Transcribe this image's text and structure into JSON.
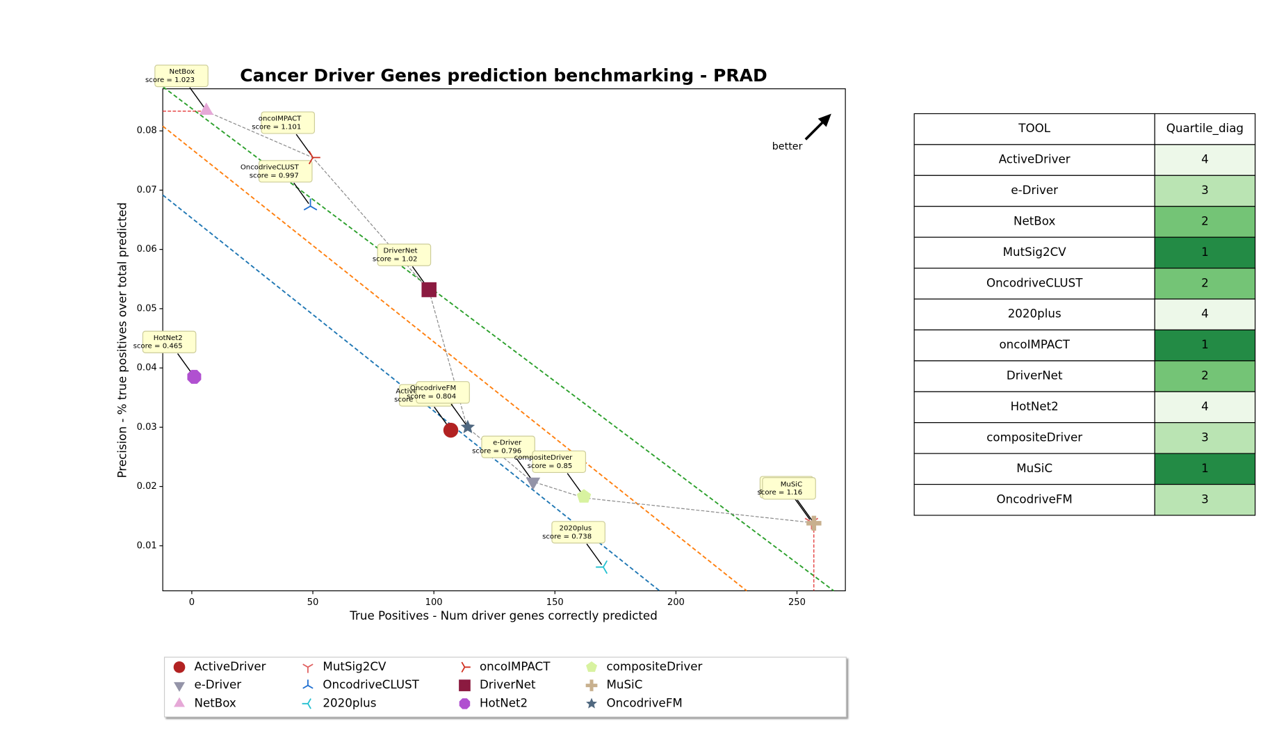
{
  "chart_data": {
    "type": "scatter",
    "title": "Cancer Driver Genes prediction benchmarking - PRAD",
    "x_label": "True Positives - Num driver genes correctly predicted",
    "y_label": "Precision - % true positives over total predicted",
    "annotation": "better",
    "xlim": [
      -12,
      270
    ],
    "xticks": [
      0,
      50,
      100,
      150,
      200,
      250
    ],
    "ylim": [
      0.0024,
      0.0871
    ],
    "yticks": [
      0.01,
      0.02,
      0.03,
      0.04,
      0.05,
      0.06,
      0.07,
      0.08
    ],
    "legend": "bottom",
    "series": [
      {
        "name": "ActiveDriver",
        "color": "#b22222",
        "marker": "circle",
        "x": [
          107
        ],
        "values": [
          0.0295
        ],
        "label": "score = 0.77"
      },
      {
        "name": "e-Driver",
        "color": "#9494a8",
        "marker": "triangle-down",
        "x": [
          141
        ],
        "values": [
          0.0208
        ],
        "label": "score = 0.796"
      },
      {
        "name": "NetBox",
        "color": "#e6a8d7",
        "marker": "triangle-up",
        "x": [
          6
        ],
        "values": [
          0.0834
        ],
        "label": "score = 1.023"
      },
      {
        "name": "MutSig2CV",
        "color": "#e06060",
        "marker": "tri-down",
        "x": [
          256
        ],
        "values": [
          0.014
        ],
        "label": "score = 1.2"
      },
      {
        "name": "OncodriveCLUST",
        "color": "#1f6fd0",
        "marker": "tri-up",
        "x": [
          49
        ],
        "values": [
          0.0673
        ],
        "label": "score = 0.997"
      },
      {
        "name": "2020plus",
        "color": "#22c0d0",
        "marker": "tri-left",
        "x": [
          170
        ],
        "values": [
          0.0064
        ],
        "label": "score = 0.738"
      },
      {
        "name": "oncoIMPACT",
        "color": "#d03020",
        "marker": "tri-right",
        "x": [
          50
        ],
        "values": [
          0.0755
        ],
        "label": "score = 1.101"
      },
      {
        "name": "DriverNet",
        "color": "#8b1a40",
        "marker": "square",
        "x": [
          98
        ],
        "values": [
          0.0532
        ],
        "label": "score = 1.02"
      },
      {
        "name": "HotNet2",
        "color": "#b050d0",
        "marker": "octagon",
        "x": [
          1
        ],
        "values": [
          0.0385
        ],
        "label": "score = 0.465"
      },
      {
        "name": "compositeDriver",
        "color": "#d8f2a0",
        "marker": "pentagon",
        "x": [
          162
        ],
        "values": [
          0.0183
        ],
        "label": "score = 0.85"
      },
      {
        "name": "MuSiC",
        "color": "#c8b08e",
        "marker": "plus",
        "x": [
          257
        ],
        "values": [
          0.0138
        ],
        "label": "score = 1.16"
      },
      {
        "name": "OncodriveFM",
        "color": "#506880",
        "marker": "star",
        "x": [
          114
        ],
        "values": [
          0.03
        ],
        "label": "score = 0.804"
      }
    ]
  },
  "table": {
    "header": [
      "TOOL",
      "Quartile_diag"
    ],
    "rows": [
      [
        "ActiveDriver",
        4
      ],
      [
        "e-Driver",
        3
      ],
      [
        "NetBox",
        2
      ],
      [
        "MutSig2CV",
        1
      ],
      [
        "OncodriveCLUST",
        2
      ],
      [
        "2020plus",
        4
      ],
      [
        "oncoIMPACT",
        1
      ],
      [
        "DriverNet",
        2
      ],
      [
        "HotNet2",
        4
      ],
      [
        "compositeDriver",
        3
      ],
      [
        "MuSiC",
        1
      ],
      [
        "OncodriveFM",
        3
      ]
    ],
    "colors": {
      "1": "#238b45",
      "2": "#74c476",
      "3": "#bae4b3",
      "4": "#edf8e9"
    }
  }
}
